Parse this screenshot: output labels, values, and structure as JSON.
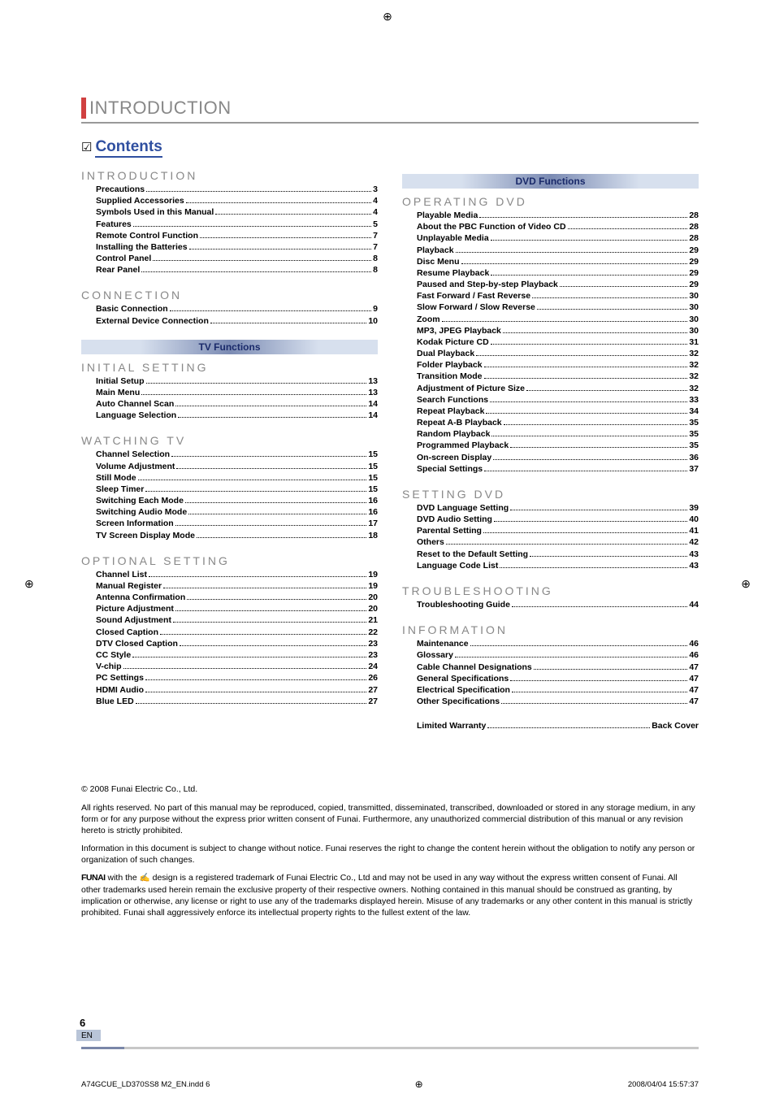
{
  "header": {
    "section_title_prefix": "I",
    "section_title": "NTRODUCTION",
    "contents_check": "☑",
    "contents_label": "Contents"
  },
  "banners": {
    "tv": "TV Functions",
    "dvd": "DVD Functions"
  },
  "toc_left": [
    {
      "heading": "INTRODUCTION",
      "items": [
        {
          "label": "Precautions",
          "page": "3"
        },
        {
          "label": "Supplied Accessories",
          "page": "4"
        },
        {
          "label": "Symbols Used in this Manual",
          "page": "4"
        },
        {
          "label": "Features",
          "page": "5"
        },
        {
          "label": "Remote Control Function",
          "page": "7"
        },
        {
          "label": "Installing the Batteries",
          "page": "7"
        },
        {
          "label": "Control Panel",
          "page": "8"
        },
        {
          "label": "Rear Panel",
          "page": "8"
        }
      ]
    },
    {
      "heading": "CONNECTION",
      "items": [
        {
          "label": "Basic Connection",
          "page": "9"
        },
        {
          "label": "External Device Connection",
          "page": "10"
        }
      ]
    }
  ],
  "toc_tv": [
    {
      "heading": "INITIAL SETTING",
      "items": [
        {
          "label": "Initial Setup",
          "page": "13"
        },
        {
          "label": "Main Menu",
          "page": "13"
        },
        {
          "label": "Auto Channel Scan",
          "page": "14"
        },
        {
          "label": "Language Selection",
          "page": "14"
        }
      ]
    },
    {
      "heading": "WATCHING TV",
      "items": [
        {
          "label": "Channel Selection",
          "page": "15"
        },
        {
          "label": "Volume Adjustment",
          "page": "15"
        },
        {
          "label": "Still Mode",
          "page": "15"
        },
        {
          "label": "Sleep Timer",
          "page": "15"
        },
        {
          "label": "Switching Each Mode",
          "page": "16"
        },
        {
          "label": "Switching Audio Mode",
          "page": "16"
        },
        {
          "label": "Screen Information",
          "page": "17"
        },
        {
          "label": "TV Screen Display Mode",
          "page": "18"
        }
      ]
    },
    {
      "heading": "OPTIONAL SETTING",
      "items": [
        {
          "label": "Channel List",
          "page": "19"
        },
        {
          "label": "Manual Register",
          "page": "19"
        },
        {
          "label": "Antenna Confirmation",
          "page": "20"
        },
        {
          "label": "Picture Adjustment",
          "page": "20"
        },
        {
          "label": "Sound Adjustment",
          "page": "21"
        },
        {
          "label": "Closed Caption",
          "page": "22"
        },
        {
          "label": "DTV Closed Caption",
          "page": "23"
        },
        {
          "label": "CC Style",
          "page": "23"
        },
        {
          "label": "V-chip",
          "page": "24"
        },
        {
          "label": "PC Settings",
          "page": "26"
        },
        {
          "label": "HDMI Audio",
          "page": "27"
        },
        {
          "label": "Blue LED",
          "page": "27"
        }
      ]
    }
  ],
  "toc_dvd": [
    {
      "heading": "OPERATING DVD",
      "items": [
        {
          "label": "Playable Media",
          "page": "28"
        },
        {
          "label": "About the PBC Function of Video CD",
          "page": "28"
        },
        {
          "label": "Unplayable Media",
          "page": "28"
        },
        {
          "label": "Playback",
          "page": "29"
        },
        {
          "label": "Disc Menu",
          "page": "29"
        },
        {
          "label": "Resume Playback",
          "page": "29"
        },
        {
          "label": "Paused and Step-by-step Playback",
          "page": "29"
        },
        {
          "label": "Fast Forward / Fast Reverse",
          "page": "30"
        },
        {
          "label": "Slow Forward / Slow Reverse",
          "page": "30"
        },
        {
          "label": "Zoom",
          "page": "30"
        },
        {
          "label": "MP3, JPEG Playback",
          "page": "30"
        },
        {
          "label": "Kodak Picture CD",
          "page": "31"
        },
        {
          "label": "Dual Playback",
          "page": "32"
        },
        {
          "label": "Folder Playback",
          "page": "32"
        },
        {
          "label": "Transition Mode",
          "page": "32"
        },
        {
          "label": "Adjustment of Picture Size",
          "page": "32"
        },
        {
          "label": "Search Functions",
          "page": "33"
        },
        {
          "label": "Repeat Playback",
          "page": "34"
        },
        {
          "label": "Repeat A-B Playback",
          "page": "35"
        },
        {
          "label": "Random Playback",
          "page": "35"
        },
        {
          "label": "Programmed Playback",
          "page": "35"
        },
        {
          "label": "On-screen Display",
          "page": "36"
        },
        {
          "label": "Special Settings",
          "page": "37"
        }
      ]
    },
    {
      "heading": "SETTING DVD",
      "items": [
        {
          "label": "DVD Language Setting",
          "page": "39"
        },
        {
          "label": "DVD Audio Setting",
          "page": "40"
        },
        {
          "label": "Parental Setting",
          "page": "41"
        },
        {
          "label": "Others",
          "page": "42"
        },
        {
          "label": "Reset to the Default Setting",
          "page": "43"
        },
        {
          "label": "Language Code List",
          "page": "43"
        }
      ]
    },
    {
      "heading": "TROUBLESHOOTING",
      "items": [
        {
          "label": "Troubleshooting Guide",
          "page": "44"
        }
      ]
    },
    {
      "heading": "INFORMATION",
      "items": [
        {
          "label": "Maintenance",
          "page": "46"
        },
        {
          "label": "Glossary",
          "page": "46"
        },
        {
          "label": "Cable Channel Designations",
          "page": "47"
        },
        {
          "label": "General Specifications",
          "page": "47"
        },
        {
          "label": "Electrical Specification",
          "page": "47"
        },
        {
          "label": "Other Specifications",
          "page": "47"
        }
      ]
    },
    {
      "heading": "",
      "items": [
        {
          "label": "Limited Warranty",
          "page": "Back Cover"
        }
      ]
    }
  ],
  "legal": {
    "copyright": "© 2008 Funai Electric Co., Ltd.",
    "p1": "All rights reserved. No part of this manual may be reproduced, copied, transmitted, disseminated, transcribed, downloaded or stored in any storage medium, in any form or for any purpose without the express prior written consent of Funai. Furthermore, any unauthorized commercial distribution of this manual or any revision hereto is strictly prohibited.",
    "p2": "Information in this document is subject to change without notice. Funai reserves the right to change the content herein without the obligation to notify any person or organization of such changes.",
    "p3_prefix": "FUNAI",
    "p3_with": " with the ",
    "p3_icon": "✍",
    "p3_body": " design is a registered trademark of Funai Electric Co., Ltd and may not be used in any way without the express written consent of Funai. All other trademarks used herein remain the exclusive property of their respective owners. Nothing contained in this manual should be construed as granting, by implication or otherwise, any license or right to use any of the trademarks displayed herein. Misuse of any trademarks or any other content in this manual is strictly prohibited. Funai shall aggressively enforce its intellectual property rights to the fullest extent of the law."
  },
  "page_footer": {
    "page_number": "6",
    "lang": "EN",
    "indd": "A74GCUE_LD370SS8 M2_EN.indd   6",
    "timestamp": "2008/04/04   15:57:37",
    "center_glyph": "⊕"
  }
}
